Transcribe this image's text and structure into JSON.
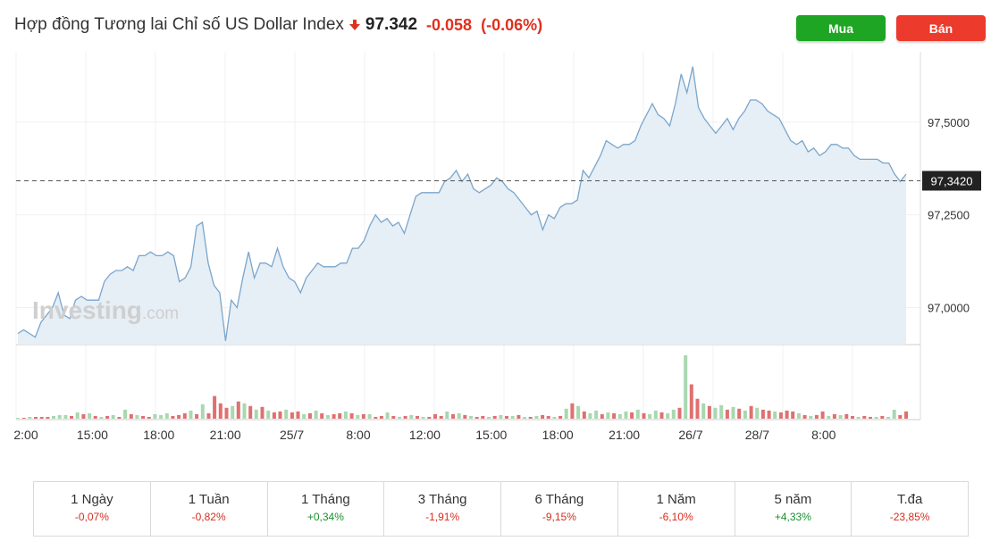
{
  "header": {
    "title": "Hợp đồng Tương lai Chỉ số US Dollar Index",
    "price": "97.342",
    "change": "-0.058",
    "change_pct": "(-0.06%)",
    "down_color": "#e0301e"
  },
  "buttons": {
    "buy_label": "Mua",
    "sell_label": "Bán"
  },
  "watermark": {
    "brand": "Investing",
    "suffix": ".com"
  },
  "chart_data": {
    "type": "area",
    "price_axis": {
      "ticks": [
        97.0,
        97.25,
        97.5
      ],
      "tick_labels": [
        "97,0000",
        "97,2500",
        "97,5000"
      ],
      "range": [
        96.9,
        97.69
      ]
    },
    "last_price": 97.342,
    "last_price_label": "97,3420",
    "x_tick_labels": [
      "2:00",
      "15:00",
      "18:00",
      "21:00",
      "25/7",
      "8:00",
      "12:00",
      "15:00",
      "18:00",
      "21:00",
      "26/7",
      "28/7",
      "8:00"
    ],
    "price_series": [
      96.93,
      96.94,
      96.93,
      96.92,
      96.96,
      96.98,
      97.0,
      97.04,
      96.98,
      96.97,
      97.02,
      97.03,
      97.02,
      97.02,
      97.02,
      97.07,
      97.09,
      97.1,
      97.1,
      97.11,
      97.1,
      97.14,
      97.14,
      97.15,
      97.14,
      97.14,
      97.15,
      97.14,
      97.07,
      97.08,
      97.11,
      97.22,
      97.23,
      97.12,
      97.06,
      97.04,
      96.91,
      97.02,
      97.0,
      97.08,
      97.15,
      97.08,
      97.12,
      97.12,
      97.11,
      97.16,
      97.11,
      97.08,
      97.07,
      97.04,
      97.08,
      97.1,
      97.12,
      97.11,
      97.11,
      97.11,
      97.12,
      97.12,
      97.16,
      97.16,
      97.18,
      97.22,
      97.25,
      97.23,
      97.24,
      97.22,
      97.23,
      97.2,
      97.25,
      97.3,
      97.31,
      97.31,
      97.31,
      97.31,
      97.34,
      97.35,
      97.37,
      97.34,
      97.36,
      97.32,
      97.31,
      97.32,
      97.33,
      97.35,
      97.34,
      97.32,
      97.31,
      97.29,
      97.27,
      97.25,
      97.26,
      97.21,
      97.25,
      97.24,
      97.27,
      97.28,
      97.28,
      97.29,
      97.37,
      97.35,
      97.38,
      97.41,
      97.45,
      97.44,
      97.43,
      97.44,
      97.44,
      97.45,
      97.49,
      97.52,
      97.55,
      97.52,
      97.51,
      97.49,
      97.55,
      97.63,
      97.58,
      97.65,
      97.54,
      97.51,
      97.49,
      97.47,
      97.49,
      97.51,
      97.48,
      97.51,
      97.53,
      97.56,
      97.56,
      97.55,
      97.53,
      97.52,
      97.51,
      97.48,
      97.45,
      97.44,
      97.45,
      97.42,
      97.43,
      97.41,
      97.42,
      97.44,
      97.44,
      97.43,
      97.43,
      97.41,
      97.4,
      97.4,
      97.4,
      97.4,
      97.39,
      97.39,
      97.36,
      97.34,
      97.36
    ],
    "volume_series": [
      {
        "v": 1,
        "up": true
      },
      {
        "v": 1,
        "up": false
      },
      {
        "v": 2,
        "up": true
      },
      {
        "v": 2,
        "up": false
      },
      {
        "v": 2,
        "up": false
      },
      {
        "v": 2,
        "up": false
      },
      {
        "v": 3,
        "up": true
      },
      {
        "v": 4,
        "up": true
      },
      {
        "v": 4,
        "up": true
      },
      {
        "v": 3,
        "up": false
      },
      {
        "v": 7,
        "up": true
      },
      {
        "v": 5,
        "up": false
      },
      {
        "v": 6,
        "up": true
      },
      {
        "v": 3,
        "up": false
      },
      {
        "v": 2,
        "up": true
      },
      {
        "v": 3,
        "up": false
      },
      {
        "v": 4,
        "up": true
      },
      {
        "v": 2,
        "up": false
      },
      {
        "v": 10,
        "up": true
      },
      {
        "v": 5,
        "up": false
      },
      {
        "v": 4,
        "up": true
      },
      {
        "v": 3,
        "up": false
      },
      {
        "v": 2,
        "up": false
      },
      {
        "v": 5,
        "up": true
      },
      {
        "v": 4,
        "up": true
      },
      {
        "v": 6,
        "up": true
      },
      {
        "v": 3,
        "up": false
      },
      {
        "v": 4,
        "up": false
      },
      {
        "v": 6,
        "up": false
      },
      {
        "v": 9,
        "up": true
      },
      {
        "v": 5,
        "up": false
      },
      {
        "v": 16,
        "up": true
      },
      {
        "v": 6,
        "up": false
      },
      {
        "v": 25,
        "up": false
      },
      {
        "v": 17,
        "up": false
      },
      {
        "v": 12,
        "up": false
      },
      {
        "v": 14,
        "up": true
      },
      {
        "v": 19,
        "up": false
      },
      {
        "v": 17,
        "up": true
      },
      {
        "v": 14,
        "up": false
      },
      {
        "v": 10,
        "up": true
      },
      {
        "v": 13,
        "up": false
      },
      {
        "v": 9,
        "up": true
      },
      {
        "v": 7,
        "up": false
      },
      {
        "v": 8,
        "up": false
      },
      {
        "v": 10,
        "up": true
      },
      {
        "v": 7,
        "up": false
      },
      {
        "v": 8,
        "up": false
      },
      {
        "v": 5,
        "up": true
      },
      {
        "v": 6,
        "up": false
      },
      {
        "v": 9,
        "up": true
      },
      {
        "v": 6,
        "up": false
      },
      {
        "v": 4,
        "up": true
      },
      {
        "v": 5,
        "up": false
      },
      {
        "v": 6,
        "up": false
      },
      {
        "v": 8,
        "up": true
      },
      {
        "v": 6,
        "up": false
      },
      {
        "v": 4,
        "up": true
      },
      {
        "v": 5,
        "up": false
      },
      {
        "v": 5,
        "up": true
      },
      {
        "v": 2,
        "up": false
      },
      {
        "v": 3,
        "up": false
      },
      {
        "v": 7,
        "up": true
      },
      {
        "v": 3,
        "up": false
      },
      {
        "v": 2,
        "up": true
      },
      {
        "v": 3,
        "up": false
      },
      {
        "v": 4,
        "up": true
      },
      {
        "v": 3,
        "up": false
      },
      {
        "v": 2,
        "up": true
      },
      {
        "v": 2,
        "up": false
      },
      {
        "v": 5,
        "up": false
      },
      {
        "v": 3,
        "up": false
      },
      {
        "v": 8,
        "up": true
      },
      {
        "v": 5,
        "up": false
      },
      {
        "v": 6,
        "up": true
      },
      {
        "v": 4,
        "up": false
      },
      {
        "v": 3,
        "up": true
      },
      {
        "v": 2,
        "up": false
      },
      {
        "v": 3,
        "up": false
      },
      {
        "v": 2,
        "up": true
      },
      {
        "v": 3,
        "up": false
      },
      {
        "v": 4,
        "up": true
      },
      {
        "v": 3,
        "up": false
      },
      {
        "v": 3,
        "up": true
      },
      {
        "v": 4,
        "up": false
      },
      {
        "v": 2,
        "up": true
      },
      {
        "v": 2,
        "up": false
      },
      {
        "v": 3,
        "up": true
      },
      {
        "v": 4,
        "up": false
      },
      {
        "v": 3,
        "up": false
      },
      {
        "v": 2,
        "up": true
      },
      {
        "v": 3,
        "up": false
      },
      {
        "v": 11,
        "up": true
      },
      {
        "v": 17,
        "up": false
      },
      {
        "v": 14,
        "up": true
      },
      {
        "v": 8,
        "up": false
      },
      {
        "v": 6,
        "up": true
      },
      {
        "v": 9,
        "up": true
      },
      {
        "v": 5,
        "up": false
      },
      {
        "v": 7,
        "up": true
      },
      {
        "v": 6,
        "up": false
      },
      {
        "v": 5,
        "up": true
      },
      {
        "v": 8,
        "up": true
      },
      {
        "v": 7,
        "up": false
      },
      {
        "v": 10,
        "up": true
      },
      {
        "v": 6,
        "up": false
      },
      {
        "v": 5,
        "up": true
      },
      {
        "v": 9,
        "up": true
      },
      {
        "v": 7,
        "up": false
      },
      {
        "v": 6,
        "up": true
      },
      {
        "v": 10,
        "up": true
      },
      {
        "v": 12,
        "up": false
      },
      {
        "v": 70,
        "up": true
      },
      {
        "v": 38,
        "up": false
      },
      {
        "v": 22,
        "up": false
      },
      {
        "v": 17,
        "up": true
      },
      {
        "v": 14,
        "up": false
      },
      {
        "v": 12,
        "up": true
      },
      {
        "v": 15,
        "up": true
      },
      {
        "v": 10,
        "up": false
      },
      {
        "v": 13,
        "up": true
      },
      {
        "v": 11,
        "up": false
      },
      {
        "v": 9,
        "up": true
      },
      {
        "v": 14,
        "up": false
      },
      {
        "v": 12,
        "up": true
      },
      {
        "v": 10,
        "up": false
      },
      {
        "v": 9,
        "up": false
      },
      {
        "v": 8,
        "up": true
      },
      {
        "v": 7,
        "up": false
      },
      {
        "v": 9,
        "up": false
      },
      {
        "v": 8,
        "up": false
      },
      {
        "v": 6,
        "up": true
      },
      {
        "v": 4,
        "up": false
      },
      {
        "v": 3,
        "up": true
      },
      {
        "v": 4,
        "up": false
      },
      {
        "v": 8,
        "up": false
      },
      {
        "v": 3,
        "up": true
      },
      {
        "v": 5,
        "up": false
      },
      {
        "v": 4,
        "up": true
      },
      {
        "v": 5,
        "up": false
      },
      {
        "v": 3,
        "up": false
      },
      {
        "v": 2,
        "up": true
      },
      {
        "v": 3,
        "up": false
      },
      {
        "v": 2,
        "up": false
      },
      {
        "v": 2,
        "up": true
      },
      {
        "v": 3,
        "up": false
      },
      {
        "v": 2,
        "up": true
      },
      {
        "v": 10,
        "up": true
      },
      {
        "v": 4,
        "up": false
      },
      {
        "v": 8,
        "up": false
      }
    ],
    "up_color": "#a8d8b0",
    "down_color": "#e07070",
    "line_color": "#7aa6cc",
    "area_color": "#e6eef6"
  },
  "performance": [
    {
      "label": "1 Ngày",
      "value": "-0,07%",
      "dir": "down"
    },
    {
      "label": "1 Tuần",
      "value": "-0,82%",
      "dir": "down"
    },
    {
      "label": "1 Tháng",
      "value": "+0,34%",
      "dir": "up"
    },
    {
      "label": "3 Tháng",
      "value": "-1,91%",
      "dir": "down"
    },
    {
      "label": "6 Tháng",
      "value": "-9,15%",
      "dir": "down"
    },
    {
      "label": "1 Năm",
      "value": "-6,10%",
      "dir": "down"
    },
    {
      "label": "5 năm",
      "value": "+4,33%",
      "dir": "up"
    },
    {
      "label": "T.đa",
      "value": "-23,85%",
      "dir": "down"
    }
  ],
  "colors": {
    "positive": "#1a8f2f",
    "negative": "#d62d20"
  }
}
